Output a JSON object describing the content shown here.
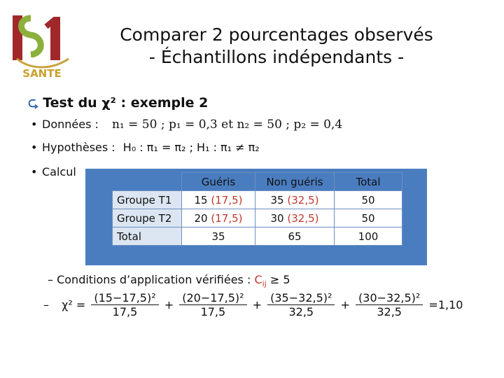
{
  "logo": {
    "text": "SANTE",
    "icon": "L1-sante-logo"
  },
  "title": {
    "line1": "Comparer 2 pourcentages observés",
    "line2": "- Échantillons indépendants -"
  },
  "heading": "Test du χ² : exemple 2",
  "bullets": {
    "donnees_label": "Données :",
    "donnees_math": "n₁ = 50 ; p₁ = 0,3  et  n₂ = 50 ; p₂ = 0,4",
    "hypotheses_label": "Hypothèses :",
    "hypotheses_math": "H₀ : π₁ = π₂ ; H₁ : π₁ ≠ π₂",
    "calcul_label": "Calcul"
  },
  "table": {
    "headers": [
      "Guéris",
      "Non guéris",
      "Total"
    ],
    "rows": [
      {
        "label": "Groupe T1",
        "cells": [
          {
            "obs": "15",
            "exp": "(17,5)"
          },
          {
            "obs": "35",
            "exp": "(32,5)"
          },
          {
            "obs": "50",
            "exp": ""
          }
        ]
      },
      {
        "label": "Groupe T2",
        "cells": [
          {
            "obs": "20",
            "exp": "(17,5)"
          },
          {
            "obs": "30",
            "exp": "(32,5)"
          },
          {
            "obs": "50",
            "exp": ""
          }
        ]
      },
      {
        "label": "Total",
        "cells": [
          {
            "obs": "35",
            "exp": ""
          },
          {
            "obs": "65",
            "exp": ""
          },
          {
            "obs": "100",
            "exp": ""
          }
        ]
      }
    ]
  },
  "conditions": {
    "text": "– Conditions d’application vérifiées : ",
    "cij": "C",
    "cij_sub": "ij",
    "rest": " ≥ 5"
  },
  "formula": {
    "dash": "–",
    "lhs": "χ² =",
    "terms": [
      {
        "num": "(15−17,5)²",
        "den": "17,5"
      },
      {
        "num": "(20−17,5)²",
        "den": "17,5"
      },
      {
        "num": "(35−32,5)²",
        "den": "32,5"
      },
      {
        "num": "(30−32,5)²",
        "den": "32,5"
      }
    ],
    "plus": "+",
    "result": "=1,10"
  }
}
